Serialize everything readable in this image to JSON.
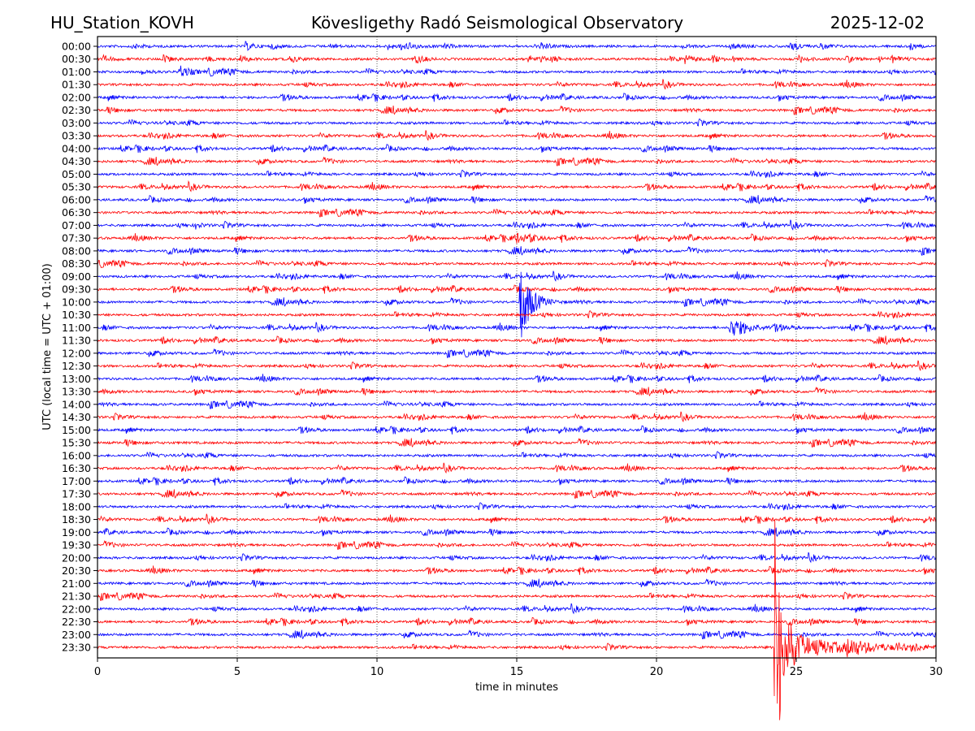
{
  "header": {
    "station": "HU_Station_KOVH",
    "title": "Kövesligethy Radó Seismological Observatory",
    "date": "2025-12-02"
  },
  "chart_data": {
    "type": "line",
    "title": "Kövesligethy Radó Seismological Observatory",
    "xlabel": "time in minutes",
    "ylabel": "UTC (local time = UTC + 01:00)",
    "xlim": [
      0,
      30
    ],
    "xticks": [
      0,
      5,
      10,
      15,
      20,
      25,
      30
    ],
    "xtick_labels": [
      "0",
      "5",
      "10",
      "15",
      "20",
      "25",
      "30"
    ],
    "grid": "vertical dotted at 5-minute ticks",
    "colors": [
      "#0000ff",
      "#ff0000"
    ],
    "trace_labels": [
      "00:00",
      "00:30",
      "01:00",
      "01:30",
      "02:00",
      "02:30",
      "03:00",
      "03:30",
      "04:00",
      "04:30",
      "05:00",
      "05:30",
      "06:00",
      "06:30",
      "07:00",
      "07:30",
      "08:00",
      "08:30",
      "09:00",
      "09:30",
      "10:00",
      "10:30",
      "11:00",
      "11:30",
      "12:00",
      "12:30",
      "13:00",
      "13:30",
      "14:00",
      "14:30",
      "15:00",
      "15:30",
      "16:00",
      "16:30",
      "17:00",
      "17:30",
      "18:00",
      "18:30",
      "19:00",
      "19:30",
      "20:00",
      "20:30",
      "21:00",
      "21:30",
      "22:00",
      "22:30",
      "23:00",
      "23:30"
    ],
    "noise_amplitude_trace_units": 0.15,
    "events": [
      {
        "trace": "01:00",
        "minute": 2.9,
        "amplitude": 0.5,
        "decay_min": 0.4
      },
      {
        "trace": "07:00",
        "minute": 3.5,
        "amplitude": 0.3,
        "decay_min": 0.2
      },
      {
        "trace": "07:30",
        "minute": 14.9,
        "amplitude": 0.4,
        "decay_min": 0.5
      },
      {
        "trace": "10:00",
        "minute": 15.1,
        "amplitude": 3.5,
        "decay_min": 0.35
      },
      {
        "trace": "11:00",
        "minute": 22.6,
        "amplitude": 0.9,
        "decay_min": 0.6
      },
      {
        "trace": "23:30",
        "minute": 24.2,
        "amplitude": 12,
        "decay_min": 0.25
      },
      {
        "trace": "23:30",
        "minute": 24.4,
        "amplitude": 1.0,
        "decay_min": 1.8
      },
      {
        "trace": "23:30",
        "minute": 26.8,
        "amplitude": 0.6,
        "decay_min": 0.6
      }
    ]
  }
}
